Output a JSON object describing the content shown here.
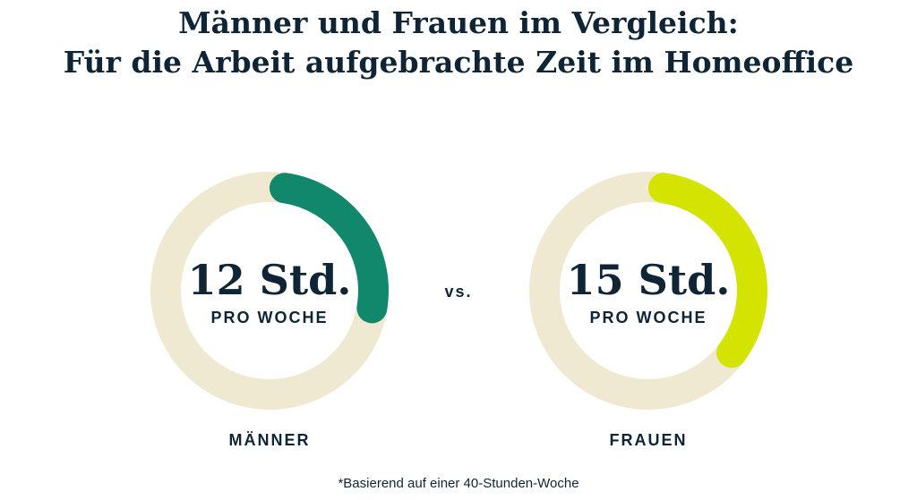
{
  "chart_data": {
    "type": "donut",
    "title_line1": "Männer und Frauen im Vergleich:",
    "title_line2": "Für die Arbeit aufgebrachte Zeit im Homeoffice",
    "total_hours": 40,
    "separator": "vs.",
    "series": [
      {
        "name": "MÄNNER",
        "value": 12,
        "value_label": "12 Std.",
        "sub_label": "PRO WOCHE",
        "color": "#11876b"
      },
      {
        "name": "FRAUEN",
        "value": 15,
        "value_label": "15 Std.",
        "sub_label": "PRO WOCHE",
        "color": "#d4e300"
      }
    ],
    "track_color": "#efe9d1",
    "footnote": "*Basierend auf einer 40-Stunden-Woche"
  }
}
